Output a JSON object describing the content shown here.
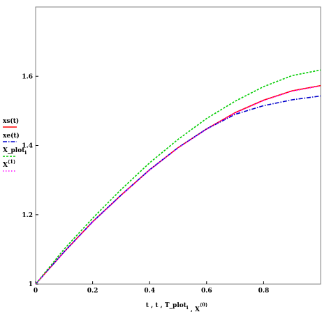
{
  "chart_data": {
    "type": "line",
    "xlim": [
      0,
      1
    ],
    "ylim": [
      1,
      1.8
    ],
    "x_ticks": [
      0,
      0.2,
      0.4,
      0.6,
      0.8
    ],
    "y_ticks": [
      1,
      1.2,
      1.4,
      1.6
    ],
    "x_tick_labels": [
      "0",
      "0.2",
      "0.4",
      "0.6",
      "0.8"
    ],
    "y_tick_labels": [
      "1",
      "1.2",
      "1.4",
      "1.6"
    ],
    "grid": false,
    "legend_position": "left",
    "xlabel": {
      "parts": [
        {
          "text": "t , t , T_plot",
          "style": "normal"
        },
        {
          "text": "i",
          "style": "sub"
        },
        {
          "text": " , X",
          "style": "normal"
        },
        {
          "text": "⟨0⟩",
          "style": "sup"
        }
      ]
    },
    "series": [
      {
        "name": "xs(t)",
        "color": "#ff0000",
        "dash": "",
        "x": [
          0,
          0.1,
          0.2,
          0.3,
          0.4,
          0.5,
          0.6,
          0.7,
          0.8,
          0.9,
          1.0
        ],
        "y": [
          1.0,
          1.093,
          1.18,
          1.257,
          1.33,
          1.394,
          1.448,
          1.495,
          1.531,
          1.558,
          1.573
        ]
      },
      {
        "name": "xe(t)",
        "color": "#0000cc",
        "dash": "6,2,1.5,2",
        "x": [
          0,
          0.1,
          0.2,
          0.3,
          0.4,
          0.5,
          0.6,
          0.7,
          0.8,
          0.9,
          1.0
        ],
        "y": [
          1.0,
          1.093,
          1.18,
          1.257,
          1.33,
          1.394,
          1.448,
          1.49,
          1.515,
          1.532,
          1.543
        ]
      },
      {
        "name": "X_plot",
        "name_sub": "i",
        "color": "#00cc00",
        "dash": "3,2",
        "x": [
          0,
          0.1,
          0.2,
          0.3,
          0.4,
          0.5,
          0.6,
          0.7,
          0.8,
          0.9,
          1.0
        ],
        "y": [
          1.0,
          1.101,
          1.19,
          1.273,
          1.35,
          1.418,
          1.478,
          1.528,
          1.57,
          1.602,
          1.618
        ]
      },
      {
        "name": "X",
        "name_sup": "⟨1⟩",
        "color": "#ff00ff",
        "dash": "1.5,2.5",
        "x": [
          0,
          0.1,
          0.2,
          0.3,
          0.4,
          0.5,
          0.6,
          0.7,
          0.8,
          0.9,
          1.0
        ],
        "y": [
          1.0,
          1.092,
          1.179,
          1.256,
          1.329,
          1.393,
          1.447,
          1.494,
          1.53,
          1.557,
          1.572
        ]
      }
    ]
  }
}
